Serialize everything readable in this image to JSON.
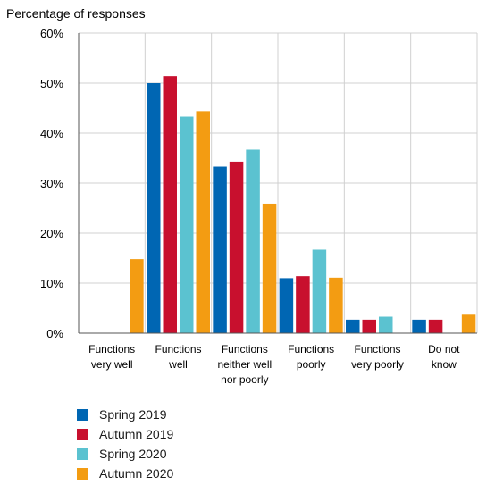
{
  "chart_data": {
    "type": "bar",
    "ylabel": "Percentage of responses",
    "ylim": [
      0,
      60
    ],
    "yticks": [
      "0%",
      "10%",
      "20%",
      "30%",
      "40%",
      "50%",
      "60%"
    ],
    "categories": [
      [
        "Functions",
        "very well"
      ],
      [
        "Functions",
        "well"
      ],
      [
        "Functions",
        "neither well",
        "nor poorly"
      ],
      [
        "Functions",
        "poorly"
      ],
      [
        "Functions",
        "very poorly"
      ],
      [
        "Do not",
        "know"
      ]
    ],
    "series": [
      {
        "name": "Spring 2019",
        "color": "#0066b3",
        "values": [
          0,
          50,
          33.3,
          11,
          2.7,
          2.7
        ]
      },
      {
        "name": "Autumn 2019",
        "color": "#c8102e",
        "values": [
          0,
          51.4,
          34.3,
          11.4,
          2.7,
          2.7
        ]
      },
      {
        "name": "Spring 2020",
        "color": "#5bc2d0",
        "values": [
          0,
          43.3,
          36.7,
          16.7,
          3.3,
          0
        ]
      },
      {
        "name": "Autumn 2020",
        "color": "#f39c12",
        "values": [
          14.8,
          44.4,
          25.9,
          11.1,
          0,
          3.7
        ]
      }
    ],
    "grid": true,
    "legend_position": "bottom-left"
  }
}
